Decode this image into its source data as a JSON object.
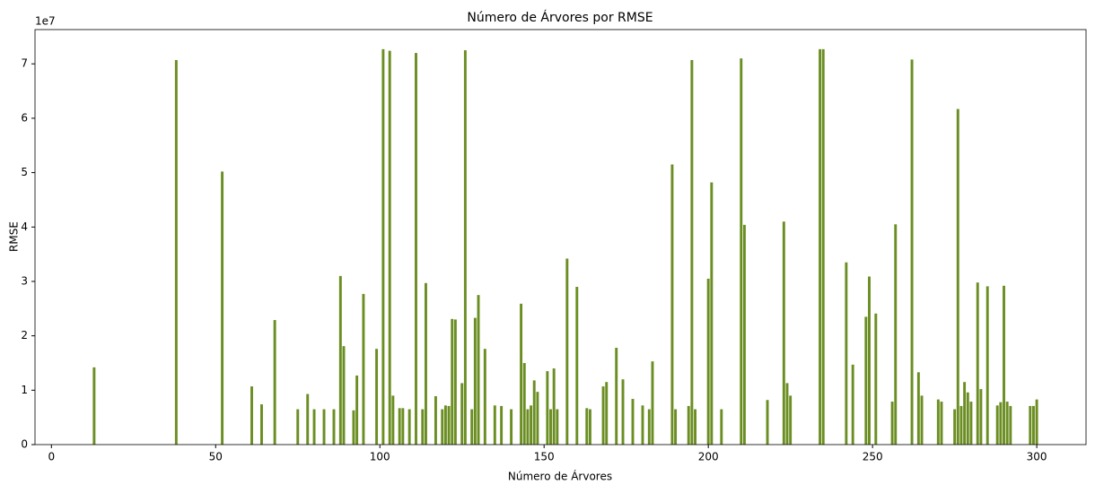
{
  "chart_data": {
    "type": "bar",
    "title": "Número de Árvores por RMSE",
    "xlabel": "Número de Árvores",
    "ylabel": "RMSE",
    "y_offset_label": "1e7",
    "color": "#6b8e23",
    "x": [
      13,
      38,
      52,
      61,
      64,
      68,
      75,
      78,
      80,
      83,
      86,
      88,
      89,
      92,
      93,
      95,
      99,
      101,
      103,
      104,
      106,
      107,
      109,
      111,
      113,
      114,
      117,
      119,
      120,
      121,
      122,
      123,
      125,
      126,
      128,
      129,
      130,
      132,
      135,
      137,
      140,
      143,
      144,
      145,
      146,
      147,
      148,
      151,
      152,
      153,
      154,
      157,
      160,
      163,
      164,
      168,
      169,
      172,
      174,
      177,
      180,
      182,
      183,
      189,
      190,
      194,
      195,
      196,
      200,
      201,
      204,
      210,
      211,
      218,
      223,
      224,
      225,
      234,
      235,
      242,
      244,
      248,
      249,
      251,
      256,
      257,
      262,
      264,
      265,
      270,
      271,
      275,
      276,
      277,
      278,
      279,
      280,
      282,
      283,
      285,
      288,
      289,
      290,
      291,
      292,
      298,
      299,
      300
    ],
    "values": [
      1.42,
      7.07,
      5.02,
      1.07,
      0.74,
      2.29,
      0.65,
      0.93,
      0.65,
      0.65,
      0.65,
      3.1,
      1.81,
      0.63,
      1.27,
      2.77,
      1.76,
      7.27,
      7.24,
      0.9,
      0.67,
      0.67,
      0.65,
      7.2,
      0.65,
      2.97,
      0.89,
      0.65,
      0.72,
      0.71,
      2.31,
      2.3,
      1.13,
      7.25,
      0.65,
      2.33,
      2.75,
      1.76,
      0.72,
      0.71,
      0.65,
      2.59,
      1.5,
      0.65,
      0.72,
      1.18,
      0.97,
      1.35,
      0.65,
      1.4,
      0.65,
      3.42,
      2.9,
      0.67,
      0.65,
      1.07,
      1.15,
      1.78,
      1.2,
      0.84,
      0.72,
      0.65,
      1.53,
      5.15,
      0.65,
      0.71,
      7.07,
      0.65,
      3.05,
      4.82,
      0.65,
      7.1,
      4.04,
      0.82,
      4.1,
      1.13,
      0.9,
      7.27,
      7.27,
      3.35,
      1.47,
      2.35,
      3.09,
      2.41,
      0.79,
      4.05,
      7.08,
      1.33,
      0.9,
      0.83,
      0.79,
      0.65,
      6.17,
      0.71,
      1.15,
      0.96,
      0.79,
      2.98,
      1.02,
      2.91,
      0.72,
      0.78,
      2.92,
      0.79,
      0.71,
      0.71,
      0.71,
      0.83
    ],
    "xlim": [
      -5,
      315
    ],
    "xticks": [
      0,
      50,
      100,
      150,
      200,
      250,
      300
    ],
    "ylim": [
      0,
      7.63
    ],
    "yticks": [
      0,
      1,
      2,
      3,
      4,
      5,
      6,
      7
    ]
  }
}
